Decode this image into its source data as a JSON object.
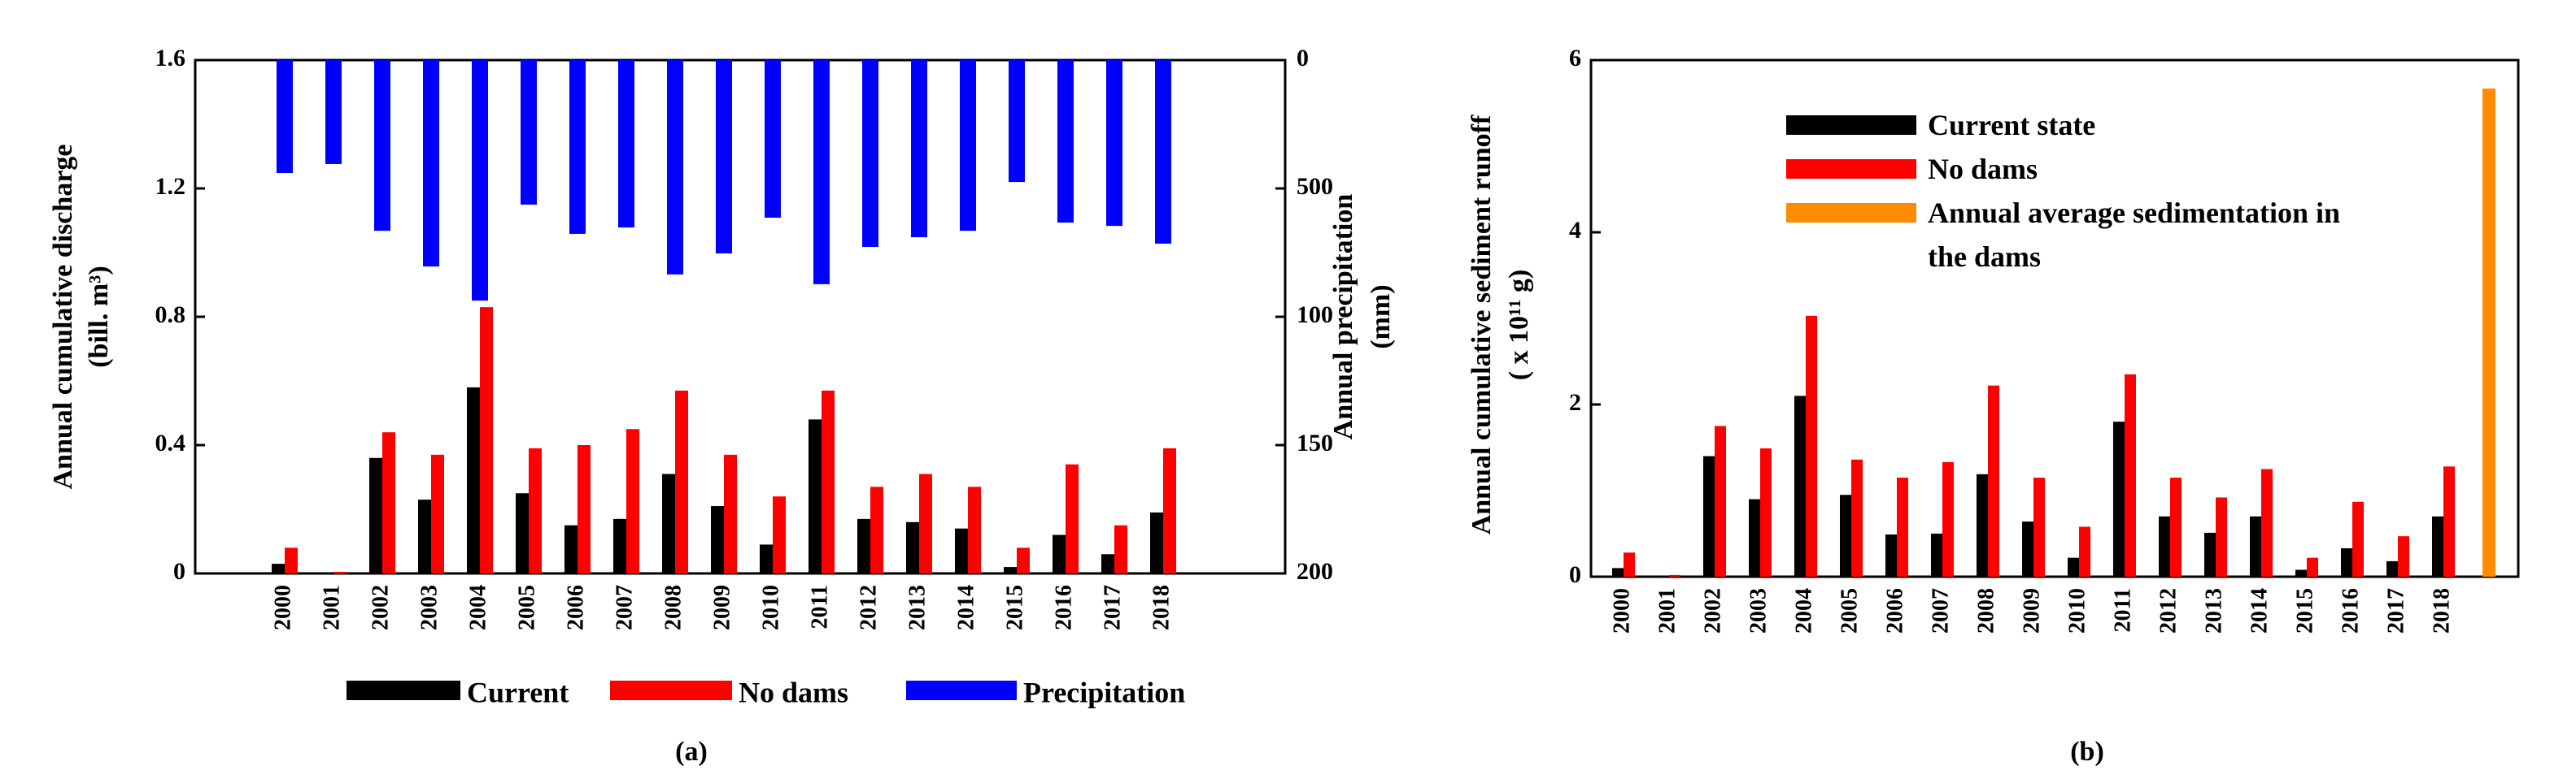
{
  "chart_data": [
    {
      "type": "bar",
      "caption": "(a)",
      "ylabel": [
        "Annual cumulative discharge",
        "(bill. m³)"
      ],
      "y2label": [
        "Annual precipitation",
        "(mm)"
      ],
      "categories": [
        "2000",
        "2001",
        "2002",
        "2003",
        "2004",
        "2005",
        "2006",
        "2007",
        "2008",
        "2009",
        "2010",
        "2011",
        "2012",
        "2013",
        "2014",
        "2015",
        "2016",
        "2017",
        "2018"
      ],
      "ylim": [
        0,
        1.6
      ],
      "yticks": [
        0,
        0.4,
        0.8,
        1.2,
        1.6
      ],
      "y2lim": [
        0,
        2000
      ],
      "y2_inverted": true,
      "y2ticks": [
        0,
        500,
        {
          "value": 1000,
          "label": "100"
        },
        {
          "value": 1500,
          "label": "150"
        },
        {
          "value": 2000,
          "label": "200"
        }
      ],
      "legend": "bottom",
      "series": [
        {
          "name": "Current",
          "color": "#000000",
          "values": [
            0.03,
            0,
            0.36,
            0.23,
            0.58,
            0.25,
            0.15,
            0.17,
            0.31,
            0.21,
            0.09,
            0.48,
            0.17,
            0.16,
            0.14,
            0.02,
            0.12,
            0.06,
            0.19
          ]
        },
        {
          "name": "No dams",
          "color": "#ff0000",
          "values": [
            0.08,
            0.005,
            0.44,
            0.37,
            0.83,
            0.39,
            0.4,
            0.45,
            0.57,
            0.37,
            0.24,
            0.57,
            0.27,
            0.31,
            0.27,
            0.08,
            0.34,
            0.15,
            0.39
          ]
        },
        {
          "name": "Precipitation",
          "color": "#0000ff",
          "axis": "y2",
          "values": [
            440,
            405,
            665,
            804,
            937,
            563,
            677,
            652,
            835,
            753,
            614,
            873,
            728,
            690,
            665,
            475,
            633,
            646,
            715
          ]
        }
      ]
    },
    {
      "type": "bar",
      "caption": "(b)",
      "ylabel": [
        "Annual cumulative sediment runoff",
        "( x 10¹¹ g)"
      ],
      "categories": [
        "2000",
        "2001",
        "2002",
        "2003",
        "2004",
        "2005",
        "2006",
        "2007",
        "2008",
        "2009",
        "2010",
        "2011",
        "2012",
        "2013",
        "2014",
        "2015",
        "2016",
        "2017",
        "2018",
        null
      ],
      "ylim": [
        0,
        6
      ],
      "yticks": [
        0,
        2,
        4,
        6
      ],
      "legend": "upper left",
      "series": [
        {
          "name": "Current state",
          "color": "#000000",
          "values": [
            0.1,
            0.01,
            1.4,
            0.9,
            2.1,
            0.95,
            0.49,
            0.5,
            1.19,
            0.64,
            0.22,
            1.8,
            0.7,
            0.51,
            0.7,
            0.08,
            0.33,
            0.18,
            0.7,
            null
          ]
        },
        {
          "name": "No dams",
          "color": "#ff0000",
          "values": [
            0.28,
            0.02,
            1.75,
            1.49,
            3.03,
            1.36,
            1.15,
            1.33,
            2.22,
            1.15,
            0.58,
            2.35,
            1.15,
            0.92,
            1.25,
            0.22,
            0.87,
            0.47,
            1.28,
            null
          ]
        },
        {
          "name": "Annual average sedimentation in the dams",
          "color": "#ff8c00",
          "values": [
            null,
            null,
            null,
            null,
            null,
            null,
            null,
            null,
            null,
            null,
            null,
            null,
            null,
            null,
            null,
            null,
            null,
            null,
            null,
            5.67
          ]
        }
      ]
    }
  ]
}
